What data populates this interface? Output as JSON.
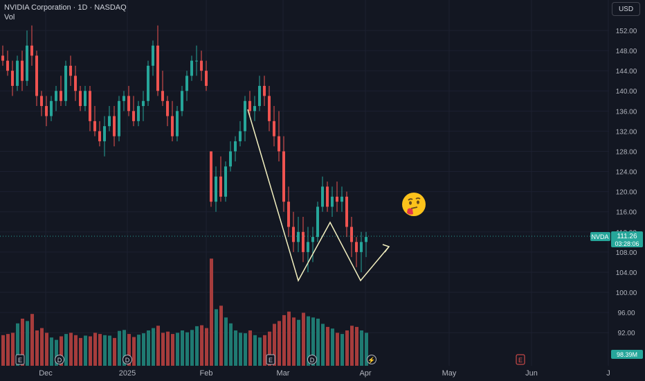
{
  "header": {
    "title": "NVIDIA Corporation · 1D · NASDAQ",
    "volume_label": "Vol"
  },
  "currency_button": "USD",
  "price_badge": {
    "symbol": "NVDA",
    "price": "111.26",
    "countdown": "03:28:06"
  },
  "volume_badge": "98.39M",
  "colors": {
    "background": "#131722",
    "up": "#26a69a",
    "down": "#ef5350",
    "up_vol": "#1f7a72",
    "down_vol": "#a63c3c",
    "drawing": "#f3f0c0",
    "grid": "#1c2030",
    "axis_text": "#b2b5be"
  },
  "event_markers": [
    {
      "icon": "earnings-icon",
      "label": "E"
    },
    {
      "icon": "dividend-icon",
      "label": "D"
    },
    {
      "icon": "dividend-icon",
      "label": "D"
    },
    {
      "icon": "earnings-icon",
      "label": "E"
    },
    {
      "icon": "dividend-icon",
      "label": "D"
    },
    {
      "icon": "lightning-icon",
      "label": "⚡"
    },
    {
      "icon": "earnings-icon",
      "label": "E"
    }
  ],
  "annotation": {
    "icon": "thinking-face-icon",
    "drawing": "double-bottom-projection"
  },
  "chart_data": {
    "type": "candlestick",
    "y_axis": {
      "ticks": [
        "152.00",
        "148.00",
        "144.00",
        "140.00",
        "136.00",
        "132.00",
        "128.00",
        "124.00",
        "120.00",
        "116.00",
        "112.00",
        "108.00",
        "104.00",
        "100.00",
        "96.00",
        "92.00"
      ],
      "range": [
        89,
        155
      ]
    },
    "x_axis": {
      "ticks": [
        "Dec",
        "2025",
        "Feb",
        "Mar",
        "Apr",
        "May",
        "Jun",
        "J"
      ]
    },
    "candles": [
      [
        147,
        149,
        145,
        146
      ],
      [
        146,
        148,
        143,
        144
      ],
      [
        144,
        146,
        139,
        141
      ],
      [
        141,
        147,
        140,
        146
      ],
      [
        146,
        148,
        140,
        142
      ],
      [
        142,
        152,
        141,
        149
      ],
      [
        149,
        153,
        145,
        147
      ],
      [
        147,
        148,
        137,
        139
      ],
      [
        139,
        140,
        135,
        137
      ],
      [
        137,
        139,
        133,
        135
      ],
      [
        135,
        139,
        134,
        138
      ],
      [
        138,
        141,
        136,
        140
      ],
      [
        140,
        143,
        137,
        138
      ],
      [
        138,
        146,
        137,
        145
      ],
      [
        145,
        147,
        141,
        143
      ],
      [
        143,
        145,
        138,
        140
      ],
      [
        140,
        141,
        136,
        137
      ],
      [
        137,
        141,
        136,
        140
      ],
      [
        140,
        141,
        132,
        134
      ],
      [
        134,
        137,
        131,
        132
      ],
      [
        132,
        134,
        129,
        130
      ],
      [
        130,
        135,
        127,
        133
      ],
      [
        133,
        137,
        132,
        135
      ],
      [
        135,
        137,
        129,
        131
      ],
      [
        131,
        139,
        130,
        138
      ],
      [
        138,
        140,
        136,
        139
      ],
      [
        139,
        141,
        135,
        136
      ],
      [
        136,
        139,
        133,
        134
      ],
      [
        134,
        138,
        133,
        137
      ],
      [
        137,
        140,
        134,
        138
      ],
      [
        138,
        146,
        137,
        145
      ],
      [
        145,
        150,
        143,
        149
      ],
      [
        149,
        153,
        139,
        140
      ],
      [
        140,
        144,
        137,
        138
      ],
      [
        138,
        139,
        133,
        135
      ],
      [
        135,
        138,
        130,
        131
      ],
      [
        131,
        137,
        130,
        136
      ],
      [
        136,
        141,
        135,
        140
      ],
      [
        140,
        144,
        138,
        143
      ],
      [
        143,
        147,
        142,
        146
      ],
      [
        146,
        149,
        143,
        146
      ],
      [
        146,
        148,
        142,
        144
      ],
      [
        144,
        146,
        140,
        141
      ],
      [
        128,
        128,
        117,
        118
      ],
      [
        118,
        125,
        116,
        123
      ],
      [
        123,
        127,
        118,
        119
      ],
      [
        119,
        126,
        118,
        125
      ],
      [
        125,
        130,
        124,
        128
      ],
      [
        128,
        131,
        126,
        130
      ],
      [
        130,
        134,
        129,
        132
      ],
      [
        132,
        139,
        130,
        138
      ],
      [
        138,
        140,
        135,
        136
      ],
      [
        136,
        139,
        134,
        137
      ],
      [
        137,
        143,
        136,
        141
      ],
      [
        141,
        143,
        137,
        139
      ],
      [
        139,
        141,
        132,
        134
      ],
      [
        134,
        137,
        129,
        131
      ],
      [
        131,
        136,
        126,
        128
      ],
      [
        128,
        131,
        116,
        118
      ],
      [
        118,
        121,
        111,
        113
      ],
      [
        113,
        116,
        108,
        110
      ],
      [
        110,
        115,
        108,
        112
      ],
      [
        112,
        115,
        106,
        108
      ],
      [
        108,
        113,
        104,
        110
      ],
      [
        110,
        113,
        106,
        111
      ],
      [
        111,
        118,
        110,
        117
      ],
      [
        117,
        123,
        116,
        121
      ],
      [
        121,
        122,
        116,
        117
      ],
      [
        117,
        121,
        115,
        119
      ],
      [
        119,
        122,
        116,
        118
      ],
      [
        118,
        121,
        116,
        119
      ],
      [
        119,
        120,
        111,
        113
      ],
      [
        113,
        115,
        107,
        110
      ],
      [
        110,
        111,
        105,
        108
      ],
      [
        108,
        112,
        104,
        110
      ],
      [
        110,
        112,
        107,
        111
      ]
    ],
    "volumes": [
      130,
      135,
      140,
      180,
      200,
      190,
      220,
      150,
      160,
      140,
      120,
      110,
      125,
      135,
      140,
      130,
      118,
      128,
      125,
      140,
      135,
      130,
      128,
      118,
      148,
      152,
      135,
      122,
      132,
      138,
      150,
      160,
      170,
      140,
      145,
      135,
      140,
      150,
      142,
      152,
      168,
      172,
      160,
      455,
      240,
      255,
      205,
      180,
      150,
      140,
      138,
      150,
      130,
      120,
      130,
      145,
      178,
      190,
      215,
      230,
      205,
      195,
      225,
      210,
      205,
      200,
      178,
      165,
      158,
      140,
      135,
      150,
      170,
      165,
      150,
      140
    ],
    "volume_colors": [
      "d",
      "d",
      "d",
      "u",
      "d",
      "u",
      "d",
      "d",
      "d",
      "d",
      "u",
      "u",
      "d",
      "u",
      "d",
      "d",
      "d",
      "u",
      "d",
      "d",
      "d",
      "u",
      "u",
      "d",
      "u",
      "u",
      "d",
      "d",
      "u",
      "u",
      "u",
      "u",
      "d",
      "d",
      "d",
      "d",
      "u",
      "u",
      "u",
      "u",
      "u",
      "d",
      "d",
      "d",
      "u",
      "d",
      "u",
      "u",
      "u",
      "u",
      "u",
      "d",
      "u",
      "u",
      "d",
      "d",
      "d",
      "d",
      "d",
      "d",
      "d",
      "u",
      "d",
      "u",
      "u",
      "u",
      "u",
      "d",
      "u",
      "d",
      "u",
      "d",
      "d",
      "d",
      "u",
      "u"
    ]
  }
}
